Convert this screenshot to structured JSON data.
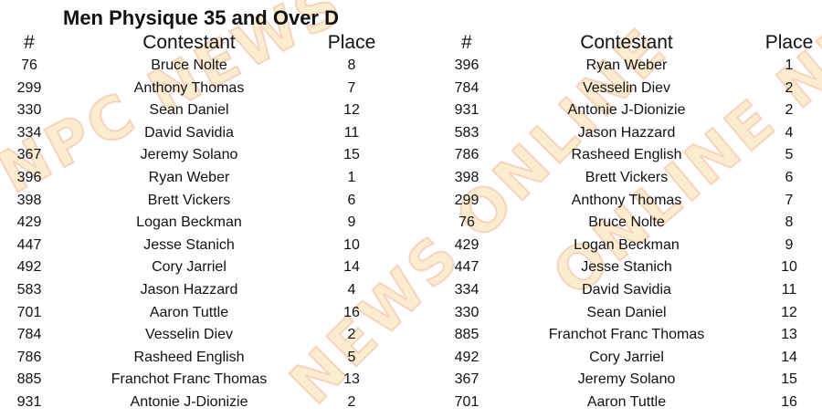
{
  "watermark": "NPC NEWS ONLINE",
  "title": "Men Physique 35 and Over D",
  "headers": {
    "number": "#",
    "contestant": "Contestant",
    "place": "Place"
  },
  "left_table": [
    {
      "number": "76",
      "name": "Bruce Nolte",
      "place": "8"
    },
    {
      "number": "299",
      "name": "Anthony Thomas",
      "place": "7"
    },
    {
      "number": "330",
      "name": "Sean Daniel",
      "place": "12"
    },
    {
      "number": "334",
      "name": "David Savidia",
      "place": "11"
    },
    {
      "number": "367",
      "name": "Jeremy Solano",
      "place": "15"
    },
    {
      "number": "396",
      "name": "Ryan Weber",
      "place": "1"
    },
    {
      "number": "398",
      "name": "Brett Vickers",
      "place": "6"
    },
    {
      "number": "429",
      "name": "Logan Beckman",
      "place": "9"
    },
    {
      "number": "447",
      "name": "Jesse Stanich",
      "place": "10"
    },
    {
      "number": "492",
      "name": "Cory Jarriel",
      "place": "14"
    },
    {
      "number": "583",
      "name": "Jason Hazzard",
      "place": "4"
    },
    {
      "number": "701",
      "name": "Aaron Tuttle",
      "place": "16"
    },
    {
      "number": "784",
      "name": "Vesselin Diev",
      "place": "2"
    },
    {
      "number": "786",
      "name": "Rasheed English",
      "place": "5"
    },
    {
      "number": "885",
      "name": "Franchot Franc Thomas",
      "place": "13"
    },
    {
      "number": "931",
      "name": "Antonie J-Dionizie",
      "place": "2"
    }
  ],
  "right_table": [
    {
      "number": "396",
      "name": "Ryan Weber",
      "place": "1"
    },
    {
      "number": "784",
      "name": "Vesselin Diev",
      "place": "2"
    },
    {
      "number": "931",
      "name": "Antonie J-Dionizie",
      "place": "2"
    },
    {
      "number": "583",
      "name": "Jason Hazzard",
      "place": "4"
    },
    {
      "number": "786",
      "name": "Rasheed English",
      "place": "5"
    },
    {
      "number": "398",
      "name": "Brett Vickers",
      "place": "6"
    },
    {
      "number": "299",
      "name": "Anthony Thomas",
      "place": "7"
    },
    {
      "number": "76",
      "name": "Bruce Nolte",
      "place": "8"
    },
    {
      "number": "429",
      "name": "Logan Beckman",
      "place": "9"
    },
    {
      "number": "447",
      "name": "Jesse Stanich",
      "place": "10"
    },
    {
      "number": "334",
      "name": "David Savidia",
      "place": "11"
    },
    {
      "number": "330",
      "name": "Sean Daniel",
      "place": "12"
    },
    {
      "number": "885",
      "name": "Franchot Franc Thomas",
      "place": "13"
    },
    {
      "number": "492",
      "name": "Cory Jarriel",
      "place": "14"
    },
    {
      "number": "367",
      "name": "Jeremy Solano",
      "place": "15"
    },
    {
      "number": "701",
      "name": "Aaron Tuttle",
      "place": "16"
    }
  ]
}
